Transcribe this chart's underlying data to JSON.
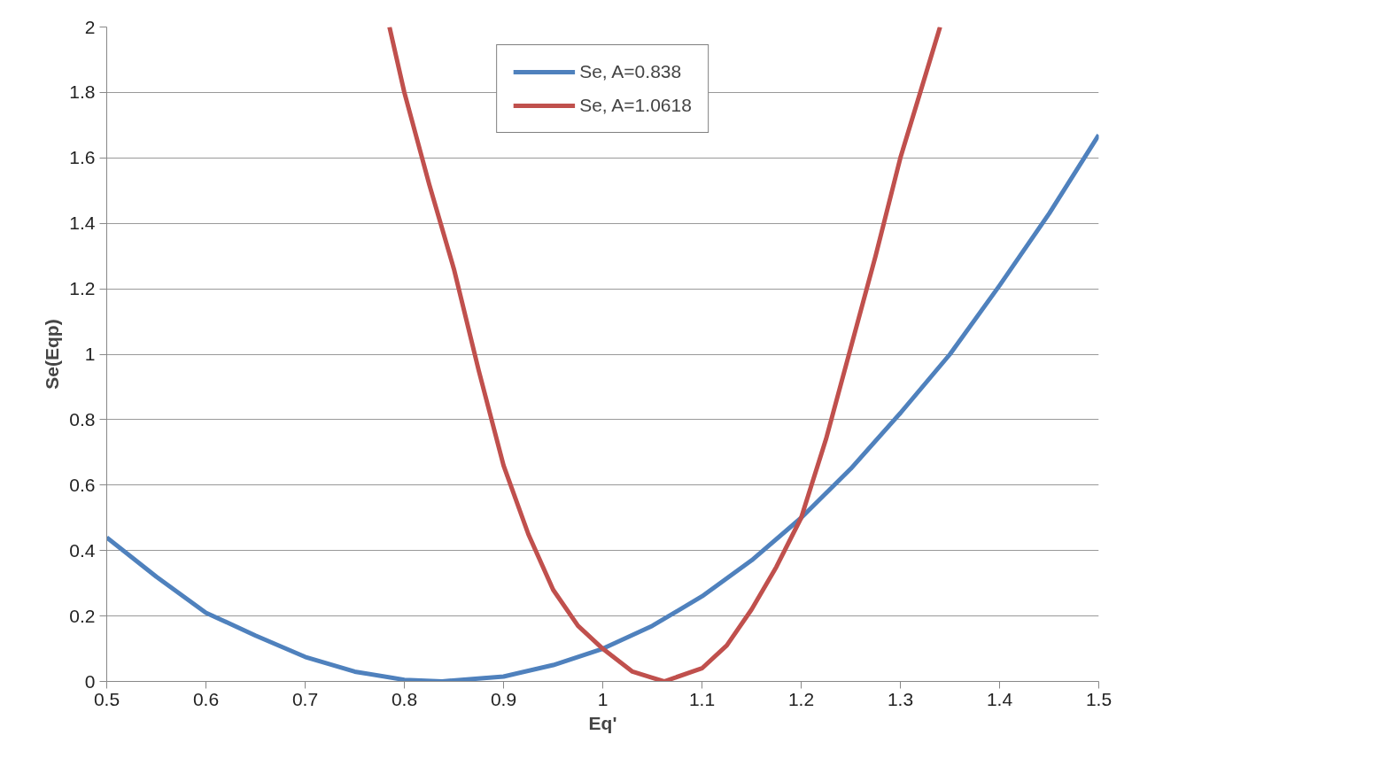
{
  "chart_data": {
    "type": "line",
    "xlabel": "Eq'",
    "ylabel": "Se(Eqp)",
    "series": [
      {
        "name": "Se, A=0.838",
        "color": "#4f81bd",
        "x": [
          0.5,
          0.55,
          0.6,
          0.65,
          0.7,
          0.75,
          0.8,
          0.838,
          0.9,
          0.95,
          1.0,
          1.05,
          1.1,
          1.15,
          1.2,
          1.25,
          1.3,
          1.35,
          1.4,
          1.45,
          1.5
        ],
        "values": [
          0.44,
          0.32,
          0.21,
          0.14,
          0.075,
          0.03,
          0.005,
          0.0,
          0.015,
          0.05,
          0.1,
          0.17,
          0.26,
          0.37,
          0.5,
          0.65,
          0.82,
          1.0,
          1.21,
          1.43,
          1.67
        ]
      },
      {
        "name": "Se, A=1.0618",
        "color": "#c0504d",
        "x": [
          0.785,
          0.8,
          0.825,
          0.85,
          0.875,
          0.9,
          0.925,
          0.95,
          0.975,
          1.0,
          1.03,
          1.0618,
          1.1,
          1.125,
          1.15,
          1.175,
          1.2,
          1.225,
          1.25,
          1.275,
          1.3,
          1.32,
          1.34
        ],
        "values": [
          2.0,
          1.8,
          1.52,
          1.26,
          0.95,
          0.66,
          0.45,
          0.28,
          0.17,
          0.1,
          0.03,
          0.0,
          0.04,
          0.11,
          0.22,
          0.35,
          0.5,
          0.74,
          1.02,
          1.3,
          1.6,
          1.8,
          2.0
        ]
      }
    ],
    "xlim": [
      0.5,
      1.5
    ],
    "xticks": [
      0.5,
      0.6,
      0.7,
      0.8,
      0.9,
      1,
      1.1,
      1.2,
      1.3,
      1.4,
      1.5
    ],
    "ylim": [
      0,
      2
    ],
    "yticks": [
      0,
      0.2,
      0.4,
      0.6,
      0.8,
      1,
      1.2,
      1.4,
      1.6,
      1.8,
      2
    ],
    "grid": "y",
    "legend": "top",
    "line_style": "solid",
    "marker": "none"
  }
}
